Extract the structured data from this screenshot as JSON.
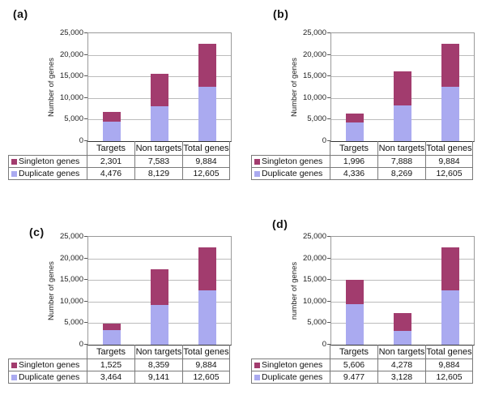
{
  "colors": {
    "singleton": "#A23C6E",
    "duplicate": "#AAAAF0",
    "gridline": "#BCBCBC",
    "plot_border": "#9A9A9A",
    "axis_line": "#333333",
    "table_border": "#7A7A7A"
  },
  "chart_data": [
    {
      "type": "bar",
      "stacked": true,
      "panel_label": "(a)",
      "ylabel": "Number of genes",
      "xlabel": "",
      "title": "",
      "ylim": [
        0,
        25000
      ],
      "ytick_labels": [
        "25,000",
        "20,000",
        "15,000",
        "10,000",
        "5,000",
        "0"
      ],
      "grid": "horizontal",
      "legend_position": "table-left",
      "categories": [
        "Targets",
        "Non targets",
        "Total genes"
      ],
      "series": [
        {
          "name": "Singleton genes",
          "color_key": "singleton",
          "values": [
            2301,
            7583,
            9884
          ],
          "value_labels": [
            "2,301",
            "7,583",
            "9,884"
          ]
        },
        {
          "name": "Duplicate genes",
          "color_key": "duplicate",
          "values": [
            4476,
            8129,
            12605
          ],
          "value_labels": [
            "4,476",
            "8,129",
            "12,605"
          ]
        }
      ]
    },
    {
      "type": "bar",
      "stacked": true,
      "panel_label": "(b)",
      "ylabel": "Number of genes",
      "xlabel": "",
      "title": "",
      "ylim": [
        0,
        25000
      ],
      "ytick_labels": [
        "25,000",
        "20,000",
        "15,000",
        "10,000",
        "5,000",
        "0"
      ],
      "grid": "horizontal",
      "legend_position": "table-left",
      "categories": [
        "Targets",
        "Non targets",
        "Total genes"
      ],
      "series": [
        {
          "name": "Singleton genes",
          "color_key": "singleton",
          "values": [
            1996,
            7888,
            9884
          ],
          "value_labels": [
            "1,996",
            "7,888",
            "9,884"
          ]
        },
        {
          "name": "Duplicate genes",
          "color_key": "duplicate",
          "values": [
            4336,
            8269,
            12605
          ],
          "value_labels": [
            "4,336",
            "8,269",
            "12,605"
          ]
        }
      ]
    },
    {
      "type": "bar",
      "stacked": true,
      "panel_label": "(c)",
      "ylabel": "Number of genes",
      "xlabel": "",
      "title": "",
      "ylim": [
        0,
        25000
      ],
      "ytick_labels": [
        "25,000",
        "20,000",
        "15,000",
        "10,000",
        "5,000",
        "0"
      ],
      "grid": "horizontal",
      "legend_position": "table-left",
      "categories": [
        "Targets",
        "Non targets",
        "Total genes"
      ],
      "series": [
        {
          "name": "Singleton genes",
          "color_key": "singleton",
          "values": [
            1525,
            8359,
            9884
          ],
          "value_labels": [
            "1,525",
            "8,359",
            "9,884"
          ]
        },
        {
          "name": "Duplicate genes",
          "color_key": "duplicate",
          "values": [
            3464,
            9141,
            12605
          ],
          "value_labels": [
            "3,464",
            "9,141",
            "12,605"
          ]
        }
      ]
    },
    {
      "type": "bar",
      "stacked": true,
      "panel_label": "(d)",
      "ylabel": "number of genes",
      "xlabel": "",
      "title": "",
      "ylim": [
        0,
        25000
      ],
      "ytick_labels": [
        "25,000",
        "20,000",
        "15,000",
        "10,000",
        "5,000",
        "0"
      ],
      "grid": "horizontal",
      "legend_position": "table-left",
      "categories": [
        "Targets",
        "Non targets",
        "Total genes"
      ],
      "series": [
        {
          "name": "Singleton genes",
          "color_key": "singleton",
          "values": [
            5606,
            4278,
            9884
          ],
          "value_labels": [
            "5,606",
            "4,278",
            "9,884"
          ]
        },
        {
          "name": "Duplicate genes",
          "color_key": "duplicate",
          "values": [
            9477,
            3128,
            12605
          ],
          "value_labels": [
            "9.477",
            "3,128",
            "12,605"
          ]
        }
      ]
    }
  ]
}
